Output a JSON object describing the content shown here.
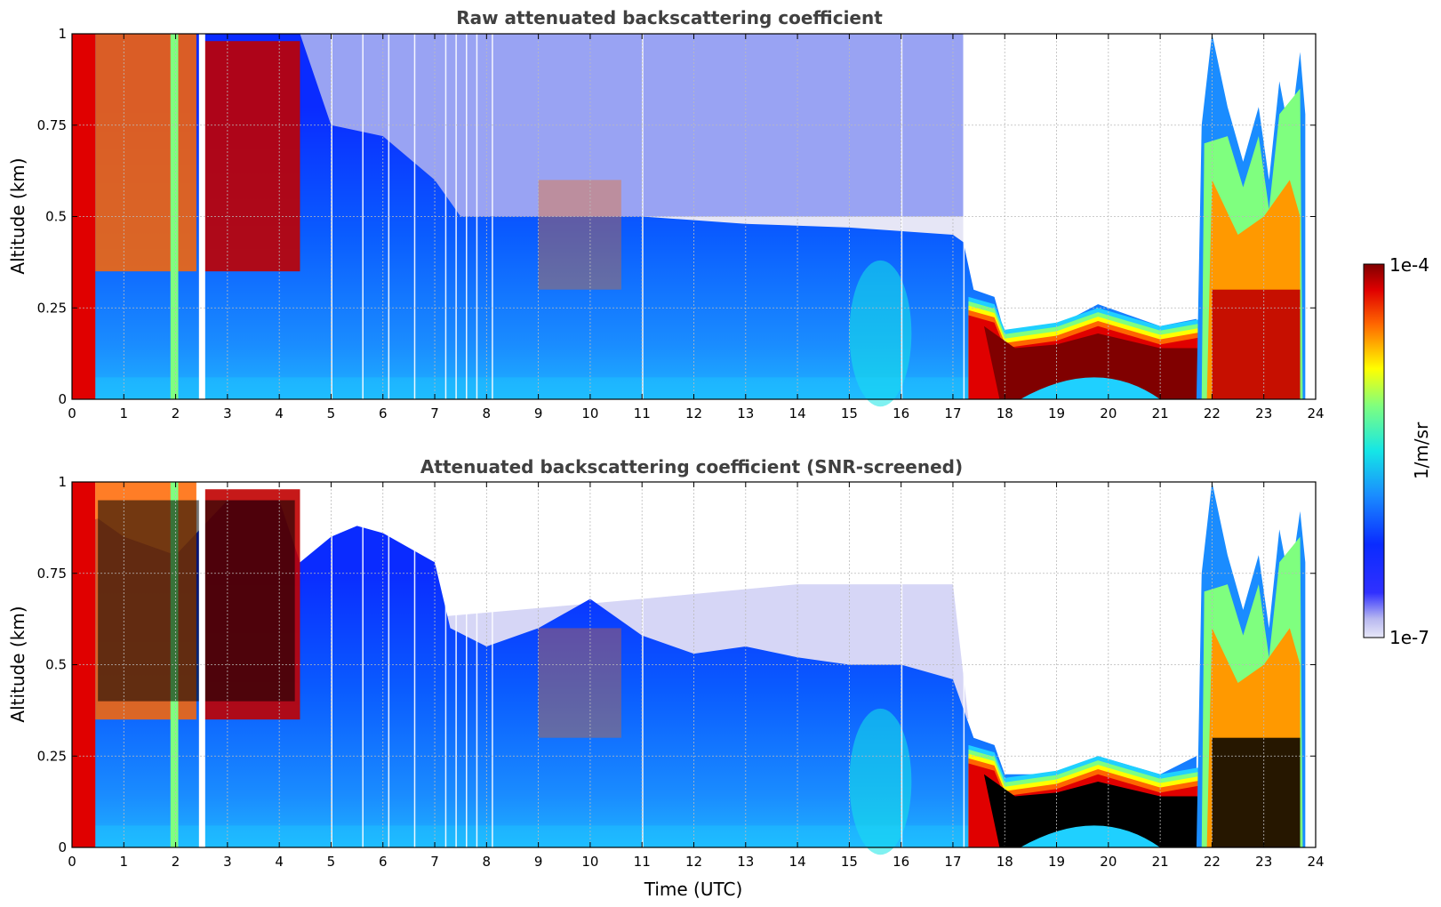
{
  "chart_data": [
    {
      "type": "heatmap",
      "title": "Raw attenuated backscattering coefficient",
      "xlabel": "",
      "ylabel": "Altitude (km)",
      "xlim": [
        0,
        24
      ],
      "ylim": [
        0,
        1
      ],
      "xticks": [
        0,
        1,
        2,
        3,
        4,
        5,
        6,
        7,
        8,
        9,
        10,
        11,
        12,
        13,
        14,
        15,
        16,
        17,
        18,
        19,
        20,
        21,
        22,
        23,
        24
      ],
      "yticks": [
        0,
        0.25,
        0.5,
        0.75,
        1
      ],
      "ytick_labels": [
        "0",
        "0.25",
        "0.5",
        "0.75",
        "1"
      ],
      "grid": true,
      "screened": false
    },
    {
      "type": "heatmap",
      "title": "Attenuated backscattering coefficient (SNR-screened)",
      "xlabel": "Time (UTC)",
      "ylabel": "Altitude (km)",
      "xlim": [
        0,
        24
      ],
      "ylim": [
        0,
        1
      ],
      "xticks": [
        0,
        1,
        2,
        3,
        4,
        5,
        6,
        7,
        8,
        9,
        10,
        11,
        12,
        13,
        14,
        15,
        16,
        17,
        18,
        19,
        20,
        21,
        22,
        23,
        24
      ],
      "yticks": [
        0,
        0.25,
        0.5,
        0.75,
        1
      ],
      "ytick_labels": [
        "0",
        "0.25",
        "0.5",
        "0.75",
        "1"
      ],
      "grid": true,
      "screened": true
    }
  ],
  "colorbar": {
    "label": "1/m/sr",
    "max_label": "1e-4",
    "min_label": "1e-7",
    "scale": "log",
    "colormap": "jet"
  },
  "colors": {
    "title": "#404040",
    "grid": "#bbbbbb",
    "low": "#e8e8f8",
    "blue": "#0a2bff",
    "high": "#800000",
    "saturated": "#000000"
  }
}
